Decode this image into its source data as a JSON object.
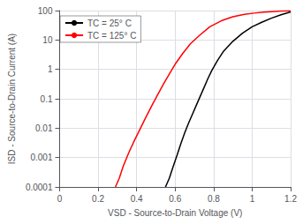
{
  "chart_data": {
    "type": "line",
    "xlabel": "VSD - Source-to-Drain Voltage (V)",
    "ylabel": "ISD - Source-to-Drain Current (A)",
    "log": "y",
    "grid": true,
    "legend": "upper left",
    "xlim": [
      0,
      1.2
    ],
    "ylim": [
      0.0001,
      100
    ],
    "xticks": [
      0,
      0.2,
      0.4,
      0.6,
      0.8,
      1,
      1.2
    ],
    "yticks": [
      0.0001,
      0.001,
      0.01,
      0.1,
      1,
      10,
      100
    ],
    "series": [
      {
        "name": "TC = 25° C",
        "color": "black",
        "x": [
          0.55,
          0.57,
          0.59,
          0.61,
          0.63,
          0.65,
          0.67,
          0.69,
          0.71,
          0.73,
          0.75,
          0.77,
          0.79,
          0.82,
          0.85,
          0.9,
          0.95,
          1.0,
          1.05,
          1.1,
          1.15,
          1.2
        ],
        "values": [
          0.0001,
          0.0002,
          0.0005,
          0.0012,
          0.003,
          0.007,
          0.015,
          0.03,
          0.06,
          0.12,
          0.24,
          0.48,
          0.9,
          2.0,
          4.0,
          9.0,
          17.0,
          28.0,
          40.0,
          55.0,
          72.0,
          90.0
        ]
      },
      {
        "name": "TC = 125° C",
        "color": "red",
        "x": [
          0.29,
          0.31,
          0.33,
          0.36,
          0.39,
          0.42,
          0.45,
          0.48,
          0.51,
          0.54,
          0.57,
          0.6,
          0.64,
          0.68,
          0.73,
          0.78,
          0.84,
          0.9,
          0.96,
          1.01,
          1.06,
          1.1,
          1.15,
          1.2
        ],
        "values": [
          0.0001,
          0.0002,
          0.0005,
          0.0015,
          0.004,
          0.01,
          0.025,
          0.06,
          0.14,
          0.32,
          0.7,
          1.5,
          3.5,
          7.5,
          15.0,
          28.0,
          45.0,
          62.0,
          75.0,
          82.0,
          88.0,
          92.0,
          96.0,
          99.0
        ]
      }
    ]
  }
}
